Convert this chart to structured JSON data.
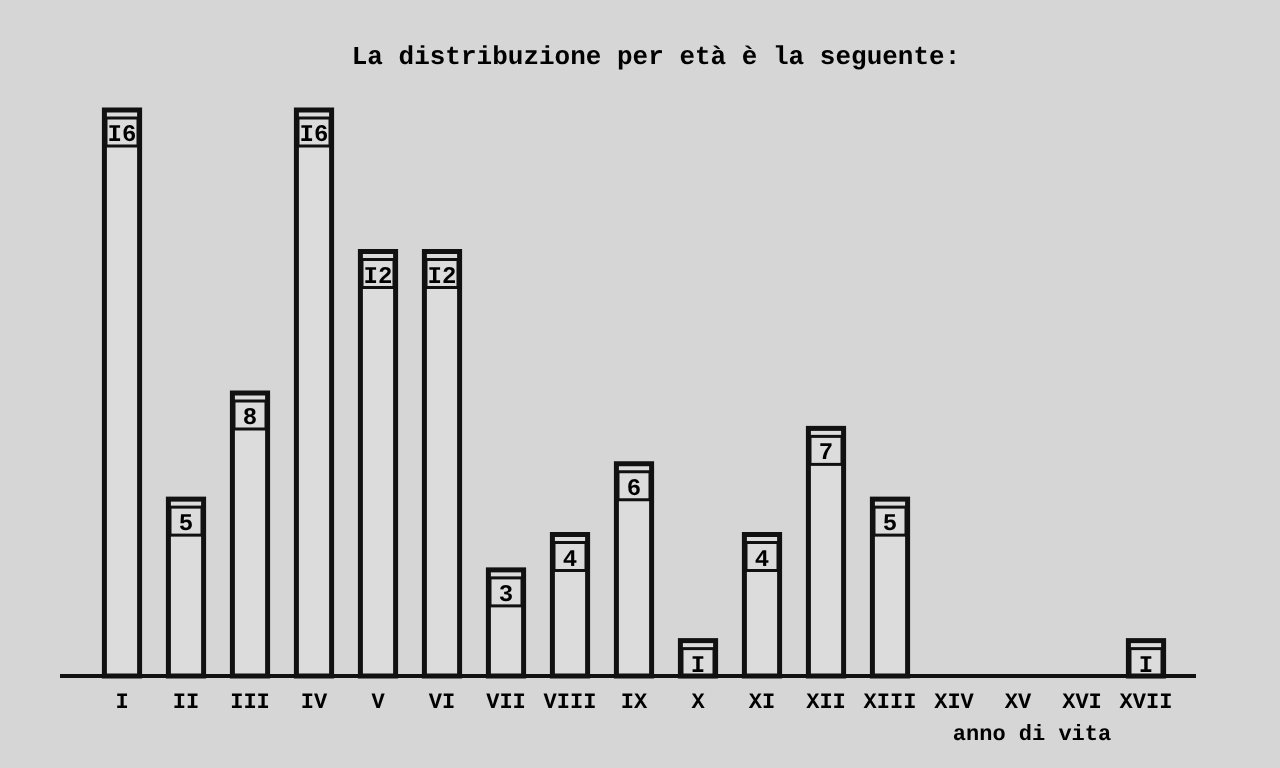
{
  "chart_data": {
    "type": "bar",
    "title": "La distribuzione per età è la seguente:",
    "xlabel": "anno di vita",
    "categories": [
      "I",
      "II",
      "III",
      "IV",
      "V",
      "VI",
      "VII",
      "VIII",
      "IX",
      "X",
      "XI",
      "XII",
      "XIII",
      "XIV",
      "XV",
      "XVI",
      "XVII"
    ],
    "values": [
      16,
      5,
      8,
      16,
      12,
      12,
      3,
      4,
      6,
      1,
      4,
      7,
      5,
      0,
      0,
      0,
      1
    ],
    "value_labels": [
      "I6",
      "5",
      "8",
      "I6",
      "I2",
      "I2",
      "3",
      "4",
      "6",
      "I",
      "4",
      "7",
      "5",
      null,
      null,
      null,
      "I"
    ],
    "color": "#dcdcdc"
  }
}
